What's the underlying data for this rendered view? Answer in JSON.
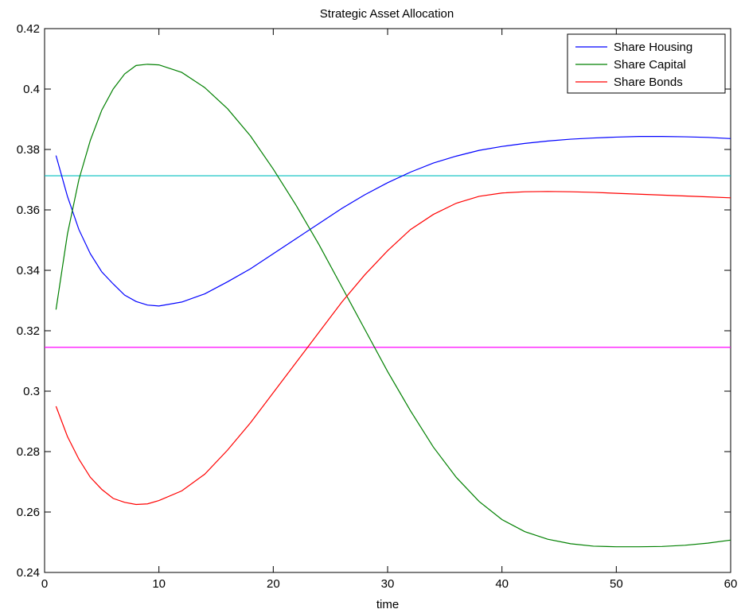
{
  "chart_data": {
    "type": "line",
    "title": "Strategic Asset Allocation",
    "xlabel": "time",
    "ylabel": "",
    "xlim": [
      0,
      60
    ],
    "ylim": [
      0.24,
      0.42
    ],
    "xticks": [
      0,
      10,
      20,
      30,
      40,
      50,
      60
    ],
    "xtick_labels": [
      "0",
      "10",
      "20",
      "30",
      "40",
      "50",
      "60"
    ],
    "yticks": [
      0.24,
      0.26,
      0.28,
      0.3,
      0.32,
      0.34,
      0.36,
      0.38,
      0.4,
      0.42
    ],
    "ytick_labels": [
      "0.24",
      "0.26",
      "0.28",
      "0.3",
      "0.32",
      "0.34",
      "0.36",
      "0.38",
      "0.4",
      "0.42"
    ],
    "grid": false,
    "legend_position": "top-right",
    "x": [
      1,
      2,
      3,
      4,
      5,
      6,
      7,
      8,
      9,
      10,
      12,
      14,
      16,
      18,
      20,
      22,
      24,
      26,
      28,
      30,
      32,
      34,
      36,
      38,
      40,
      42,
      44,
      46,
      48,
      50,
      52,
      54,
      56,
      58,
      60
    ],
    "series": [
      {
        "name": "Share Housing",
        "color": "#0000ff",
        "values": [
          0.378,
          0.3645,
          0.3535,
          0.3455,
          0.3395,
          0.3355,
          0.3318,
          0.3297,
          0.3285,
          0.3282,
          0.3295,
          0.3322,
          0.3362,
          0.3405,
          0.3455,
          0.3505,
          0.3555,
          0.3605,
          0.365,
          0.369,
          0.3725,
          0.3755,
          0.3778,
          0.3797,
          0.381,
          0.382,
          0.3828,
          0.3834,
          0.3838,
          0.3841,
          0.3843,
          0.3843,
          0.3842,
          0.384,
          0.3836
        ]
      },
      {
        "name": "Share Capital",
        "color": "#008000",
        "values": [
          0.327,
          0.352,
          0.37,
          0.383,
          0.393,
          0.4,
          0.405,
          0.4078,
          0.4082,
          0.408,
          0.4055,
          0.4005,
          0.3935,
          0.3845,
          0.3735,
          0.3615,
          0.3485,
          0.3345,
          0.3205,
          0.3065,
          0.2935,
          0.2815,
          0.2715,
          0.2635,
          0.2575,
          0.2535,
          0.251,
          0.2495,
          0.2487,
          0.2485,
          0.2485,
          0.2486,
          0.249,
          0.2497,
          0.2507
        ]
      },
      {
        "name": "Share Bonds",
        "color": "#ff0000",
        "values": [
          0.295,
          0.285,
          0.2775,
          0.2715,
          0.2675,
          0.2645,
          0.2632,
          0.2625,
          0.2627,
          0.2638,
          0.267,
          0.2725,
          0.2805,
          0.2895,
          0.2995,
          0.3095,
          0.3195,
          0.3295,
          0.3385,
          0.3465,
          0.3535,
          0.3585,
          0.3622,
          0.3645,
          0.3656,
          0.366,
          0.3661,
          0.366,
          0.3658,
          0.3655,
          0.3652,
          0.3649,
          0.3646,
          0.3643,
          0.364
        ]
      }
    ],
    "reference_lines": [
      {
        "color": "#00bfbf",
        "y": 0.3713
      },
      {
        "color": "#ff00ff",
        "y": 0.3145
      }
    ]
  }
}
